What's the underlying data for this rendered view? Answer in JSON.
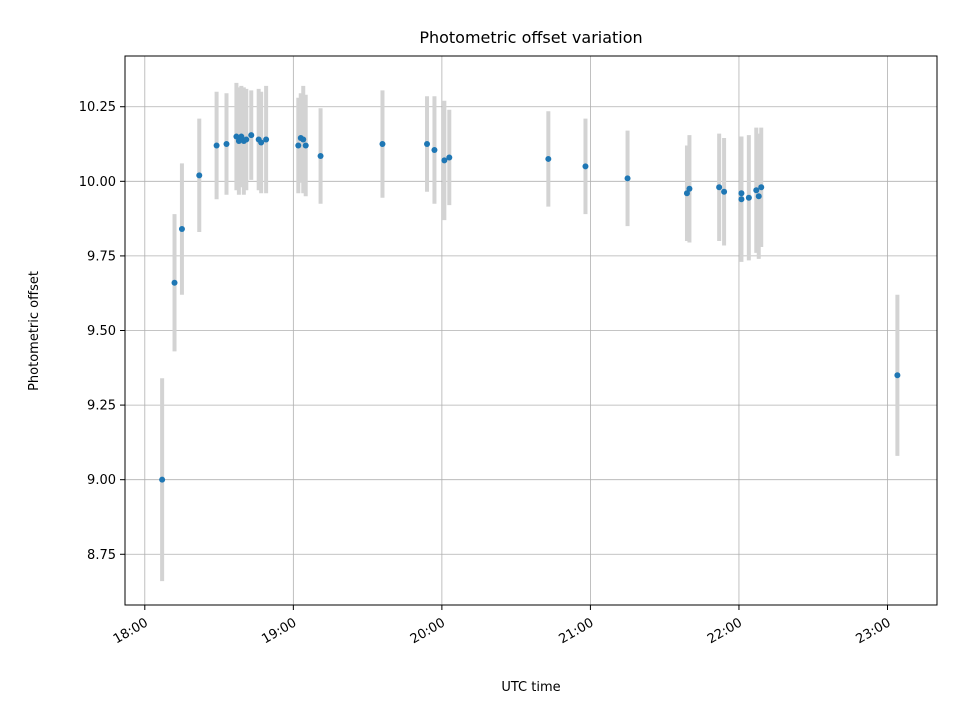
{
  "chart_data": {
    "type": "scatter",
    "title": "Photometric offset variation",
    "xlabel": "UTC time",
    "ylabel": "Photometric offset",
    "x_ticks": [
      "18:00",
      "19:00",
      "20:00",
      "21:00",
      "22:00",
      "23:00"
    ],
    "y_ticks": [
      "8.75",
      "9.00",
      "9.25",
      "9.50",
      "9.75",
      "10.00",
      "10.25"
    ],
    "xlim": [
      "17:52",
      "23:20"
    ],
    "ylim": [
      8.58,
      10.42
    ],
    "grid": true,
    "point_color": "#1f77b4",
    "errorbar_color": "#d3d3d3",
    "points": [
      {
        "t": "18:07",
        "y": 9.0,
        "err": 0.34
      },
      {
        "t": "18:12",
        "y": 9.66,
        "err": 0.23
      },
      {
        "t": "18:15",
        "y": 9.84,
        "err": 0.22
      },
      {
        "t": "18:22",
        "y": 10.02,
        "err": 0.19
      },
      {
        "t": "18:29",
        "y": 10.12,
        "err": 0.18
      },
      {
        "t": "18:33",
        "y": 10.125,
        "err": 0.17
      },
      {
        "t": "18:37",
        "y": 10.15,
        "err": 0.18
      },
      {
        "t": "18:38",
        "y": 10.135,
        "err": 0.18
      },
      {
        "t": "18:39",
        "y": 10.15,
        "err": 0.17
      },
      {
        "t": "18:40",
        "y": 10.135,
        "err": 0.18
      },
      {
        "t": "18:41",
        "y": 10.14,
        "err": 0.17
      },
      {
        "t": "18:43",
        "y": 10.155,
        "err": 0.15
      },
      {
        "t": "18:46",
        "y": 10.14,
        "err": 0.17
      },
      {
        "t": "18:47",
        "y": 10.13,
        "err": 0.17
      },
      {
        "t": "18:49",
        "y": 10.14,
        "err": 0.18
      },
      {
        "t": "19:02",
        "y": 10.12,
        "err": 0.16
      },
      {
        "t": "19:03",
        "y": 10.145,
        "err": 0.15
      },
      {
        "t": "19:04",
        "y": 10.14,
        "err": 0.18
      },
      {
        "t": "19:05",
        "y": 10.12,
        "err": 0.17
      },
      {
        "t": "19:11",
        "y": 10.085,
        "err": 0.16
      },
      {
        "t": "19:36",
        "y": 10.125,
        "err": 0.18
      },
      {
        "t": "19:54",
        "y": 10.125,
        "err": 0.16
      },
      {
        "t": "19:57",
        "y": 10.105,
        "err": 0.18
      },
      {
        "t": "20:01",
        "y": 10.07,
        "err": 0.2
      },
      {
        "t": "20:03",
        "y": 10.08,
        "err": 0.16
      },
      {
        "t": "20:43",
        "y": 10.075,
        "err": 0.16
      },
      {
        "t": "20:58",
        "y": 10.05,
        "err": 0.16
      },
      {
        "t": "21:15",
        "y": 10.01,
        "err": 0.16
      },
      {
        "t": "21:39",
        "y": 9.96,
        "err": 0.16
      },
      {
        "t": "21:40",
        "y": 9.975,
        "err": 0.18
      },
      {
        "t": "21:52",
        "y": 9.98,
        "err": 0.18
      },
      {
        "t": "21:54",
        "y": 9.965,
        "err": 0.18
      },
      {
        "t": "22:01",
        "y": 9.94,
        "err": 0.21
      },
      {
        "t": "22:01",
        "y": 9.96,
        "err": 0.19
      },
      {
        "t": "22:04",
        "y": 9.945,
        "err": 0.21
      },
      {
        "t": "22:07",
        "y": 9.97,
        "err": 0.21
      },
      {
        "t": "22:08",
        "y": 9.95,
        "err": 0.21
      },
      {
        "t": "22:09",
        "y": 9.98,
        "err": 0.2
      },
      {
        "t": "23:04",
        "y": 9.35,
        "err": 0.27
      }
    ]
  }
}
